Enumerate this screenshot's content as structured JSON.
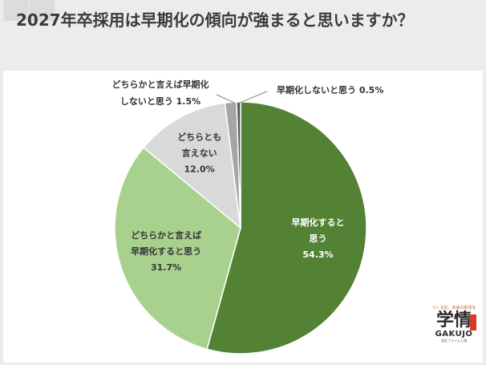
{
  "title": "2027年卒採用は早期化の傾向が強まると思いますか？",
  "chart_data": {
    "type": "pie",
    "title": "2027年卒採用は早期化の傾向が強まると思いますか？",
    "start_angle_deg": 0,
    "direction": "clockwise",
    "slices": [
      {
        "label_lines": [
          "早期化すると",
          "思う"
        ],
        "value": 54.3,
        "value_label": "54.3%",
        "color": "#548235",
        "label_inside": true
      },
      {
        "label_lines": [
          "どちらかと言えば",
          "早期化すると思う"
        ],
        "value": 31.7,
        "value_label": "31.7%",
        "color": "#a9d18e",
        "label_inside": true
      },
      {
        "label_lines": [
          "どちらとも",
          "言えない"
        ],
        "value": 12.0,
        "value_label": "12.0%",
        "color": "#d9d9d9",
        "label_inside": true
      },
      {
        "label_lines": [
          "どちらかと言えば早期化",
          "しないと思う 1.5%"
        ],
        "value": 1.5,
        "value_label": "",
        "color": "#a6a6a6",
        "label_inside": false
      },
      {
        "label_lines": [
          "早期化しないと思う 0.5%"
        ],
        "value": 0.5,
        "value_label": "",
        "color": "#595959",
        "label_inside": false
      }
    ]
  },
  "logo": {
    "tagline": "つくる社、未来の就活を",
    "kanji": "学情",
    "english": "GAKUJO",
    "sub": "東証プライム上場"
  }
}
